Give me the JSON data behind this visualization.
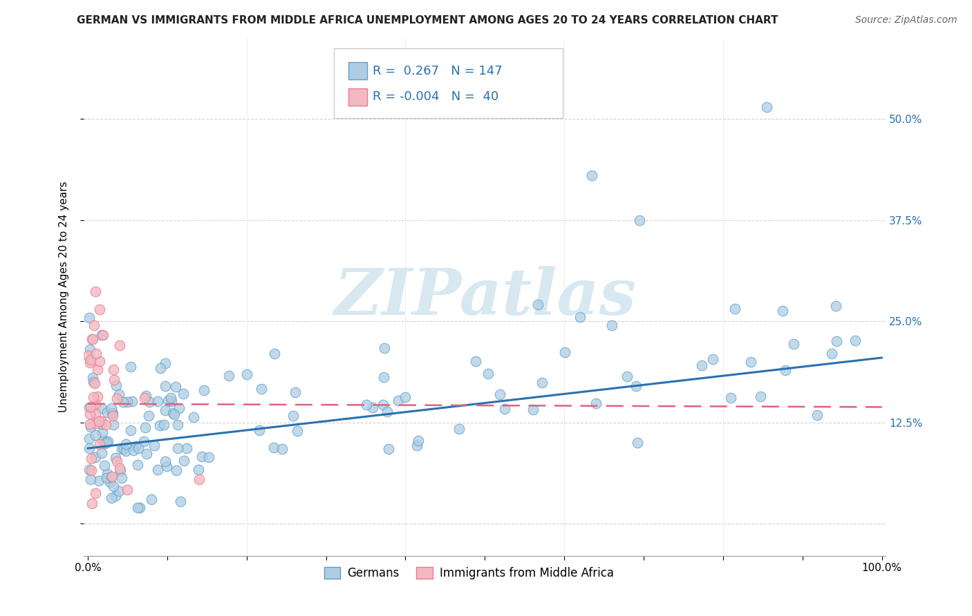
{
  "title": "GERMAN VS IMMIGRANTS FROM MIDDLE AFRICA UNEMPLOYMENT AMONG AGES 20 TO 24 YEARS CORRELATION CHART",
  "source": "Source: ZipAtlas.com",
  "ylabel": "Unemployment Among Ages 20 to 24 years",
  "xlim": [
    -0.005,
    1.005
  ],
  "ylim": [
    -0.04,
    0.6
  ],
  "xticks": [
    0.0,
    0.1,
    0.2,
    0.3,
    0.4,
    0.5,
    0.6,
    0.7,
    0.8,
    0.9,
    1.0
  ],
  "ytick_positions": [
    0.0,
    0.125,
    0.25,
    0.375,
    0.5
  ],
  "ytick_labels_right": [
    "",
    "12.5%",
    "25.0%",
    "37.5%",
    "50.0%"
  ],
  "legend_german_r": "0.267",
  "legend_german_n": "147",
  "legend_immigrant_r": "-0.004",
  "legend_immigrant_n": "40",
  "blue_fill": "#aecde3",
  "blue_edge": "#5b9ec9",
  "pink_fill": "#f4b8c1",
  "pink_edge": "#e87a8d",
  "blue_line_color": "#2971b0",
  "pink_line_color": "#e06080",
  "watermark_color": "#d8e8f0",
  "watermark_text": "ZIPatlas",
  "blue_line_x": [
    0.0,
    1.0
  ],
  "blue_line_y": [
    0.093,
    0.205
  ],
  "pink_line_x": [
    0.0,
    1.0
  ],
  "pink_line_y": [
    0.148,
    0.144
  ],
  "grid_color": "#cccccc",
  "title_fontsize": 11,
  "source_fontsize": 10,
  "axis_label_fontsize": 11,
  "tick_fontsize": 11,
  "legend_fontsize": 13,
  "right_tick_color": "#2971b0"
}
